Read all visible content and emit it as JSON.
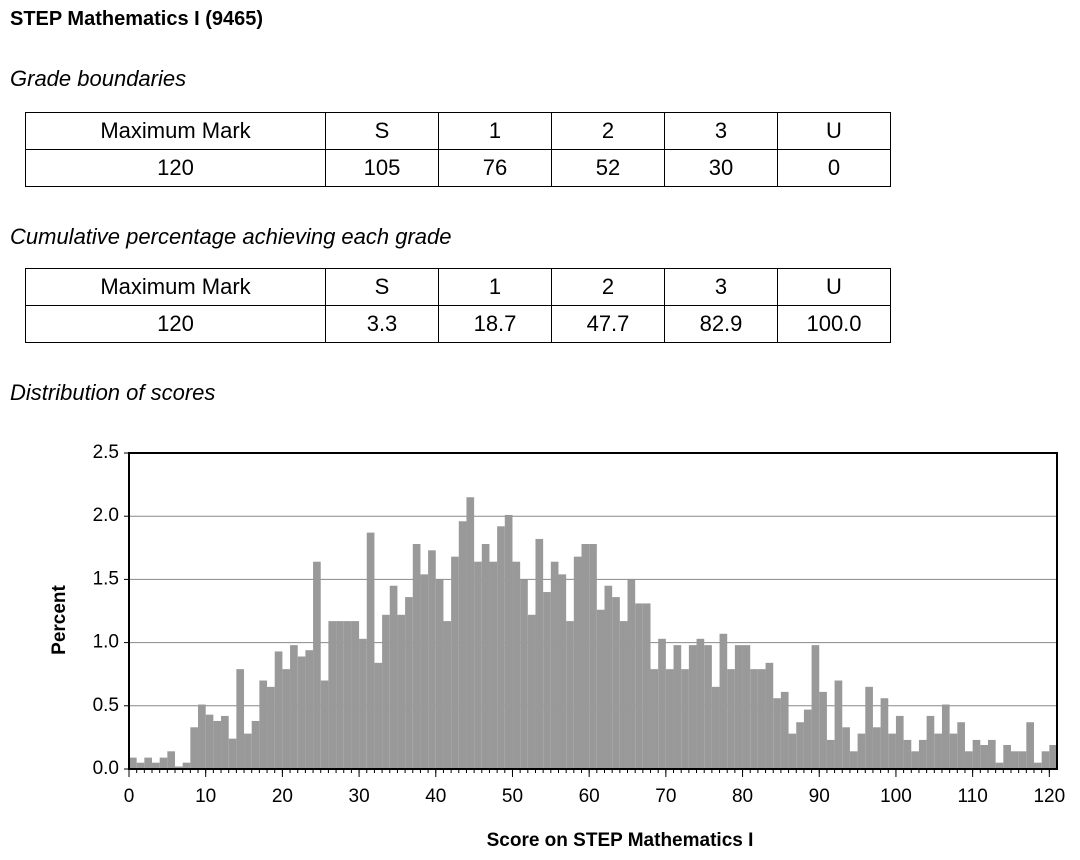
{
  "title": "STEP Mathematics I (9465)",
  "sections": {
    "grade_boundaries": "Grade boundaries",
    "cumulative": "Cumulative percentage achieving each grade",
    "distribution": "Distribution of scores"
  },
  "tables": [
    {
      "header": [
        "Maximum Mark",
        "S",
        "1",
        "2",
        "3",
        "U"
      ],
      "row": [
        "120",
        "105",
        "76",
        "52",
        "30",
        "0"
      ]
    },
    {
      "header": [
        "Maximum Mark",
        "S",
        "1",
        "2",
        "3",
        "U"
      ],
      "row": [
        "120",
        "3.3",
        "18.7",
        "47.7",
        "82.9",
        "100.0"
      ]
    }
  ],
  "chart_data": {
    "type": "histogram",
    "x_label": "Score on STEP Mathematics I",
    "y_label": "Percent",
    "color": "#999999",
    "grid": true,
    "xlim": [
      0,
      121
    ],
    "ylim": [
      0,
      2.5
    ],
    "xticks": [
      0,
      10,
      20,
      30,
      40,
      50,
      60,
      70,
      80,
      90,
      100,
      110,
      120
    ],
    "yticks": [
      {
        "value": 0,
        "label": "0.0"
      },
      0.5,
      {
        "value": 1,
        "label": "1.0"
      },
      1.5,
      {
        "value": 2,
        "label": "2.0"
      },
      2.5
    ],
    "bins": [
      0,
      1,
      2,
      3,
      4,
      5,
      6,
      7,
      8,
      9,
      10,
      11,
      12,
      13,
      14,
      15,
      16,
      17,
      18,
      19,
      20,
      21,
      22,
      23,
      24,
      25,
      26,
      27,
      28,
      29,
      30,
      31,
      32,
      33,
      34,
      35,
      36,
      37,
      38,
      39,
      40,
      41,
      42,
      43,
      44,
      45,
      46,
      47,
      48,
      49,
      50,
      51,
      52,
      53,
      54,
      55,
      56,
      57,
      58,
      59,
      60,
      61,
      62,
      63,
      64,
      65,
      66,
      67,
      68,
      69,
      70,
      71,
      72,
      73,
      74,
      75,
      76,
      77,
      78,
      79,
      80,
      81,
      82,
      83,
      84,
      85,
      86,
      87,
      88,
      89,
      90,
      91,
      92,
      93,
      94,
      95,
      96,
      97,
      98,
      99,
      100,
      101,
      102,
      103,
      104,
      105,
      106,
      107,
      108,
      109,
      110,
      111,
      112,
      113,
      114,
      115,
      116,
      117,
      118,
      119,
      120,
      121
    ],
    "values": [
      0.09,
      0.05,
      0.09,
      0.05,
      0.09,
      0.14,
      0.02,
      0.05,
      0.33,
      0.51,
      0.43,
      0.38,
      0.42,
      0.24,
      0.79,
      0.28,
      0.38,
      0.7,
      0.65,
      0.93,
      0.79,
      0.98,
      0.89,
      0.94,
      1.64,
      0.7,
      1.17,
      1.17,
      1.17,
      1.17,
      1.03,
      1.87,
      0.84,
      1.22,
      1.45,
      1.22,
      1.36,
      1.78,
      1.54,
      1.73,
      1.5,
      1.17,
      1.68,
      1.96,
      2.15,
      1.64,
      1.78,
      1.64,
      1.92,
      2.01,
      1.64,
      1.5,
      1.22,
      1.82,
      1.4,
      1.64,
      1.54,
      1.17,
      1.68,
      1.78,
      1.78,
      1.26,
      1.45,
      1.36,
      1.17,
      1.5,
      1.31,
      1.31,
      0.79,
      1.03,
      0.79,
      0.98,
      0.79,
      0.98,
      1.03,
      0.98,
      0.65,
      1.07,
      0.79,
      0.98,
      0.98,
      0.79,
      0.79,
      0.84,
      0.56,
      0.61,
      0.28,
      0.37,
      0.47,
      0.98,
      0.61,
      0.23,
      0.7,
      0.33,
      0.14,
      0.28,
      0.65,
      0.33,
      0.56,
      0.28,
      0.42,
      0.23,
      0.14,
      0.23,
      0.42,
      0.28,
      0.51,
      0.28,
      0.37,
      0.14,
      0.23,
      0.19,
      0.23,
      0.05,
      0.19,
      0.14,
      0.14,
      0.37,
      0.05,
      0.14,
      0.19
    ]
  }
}
